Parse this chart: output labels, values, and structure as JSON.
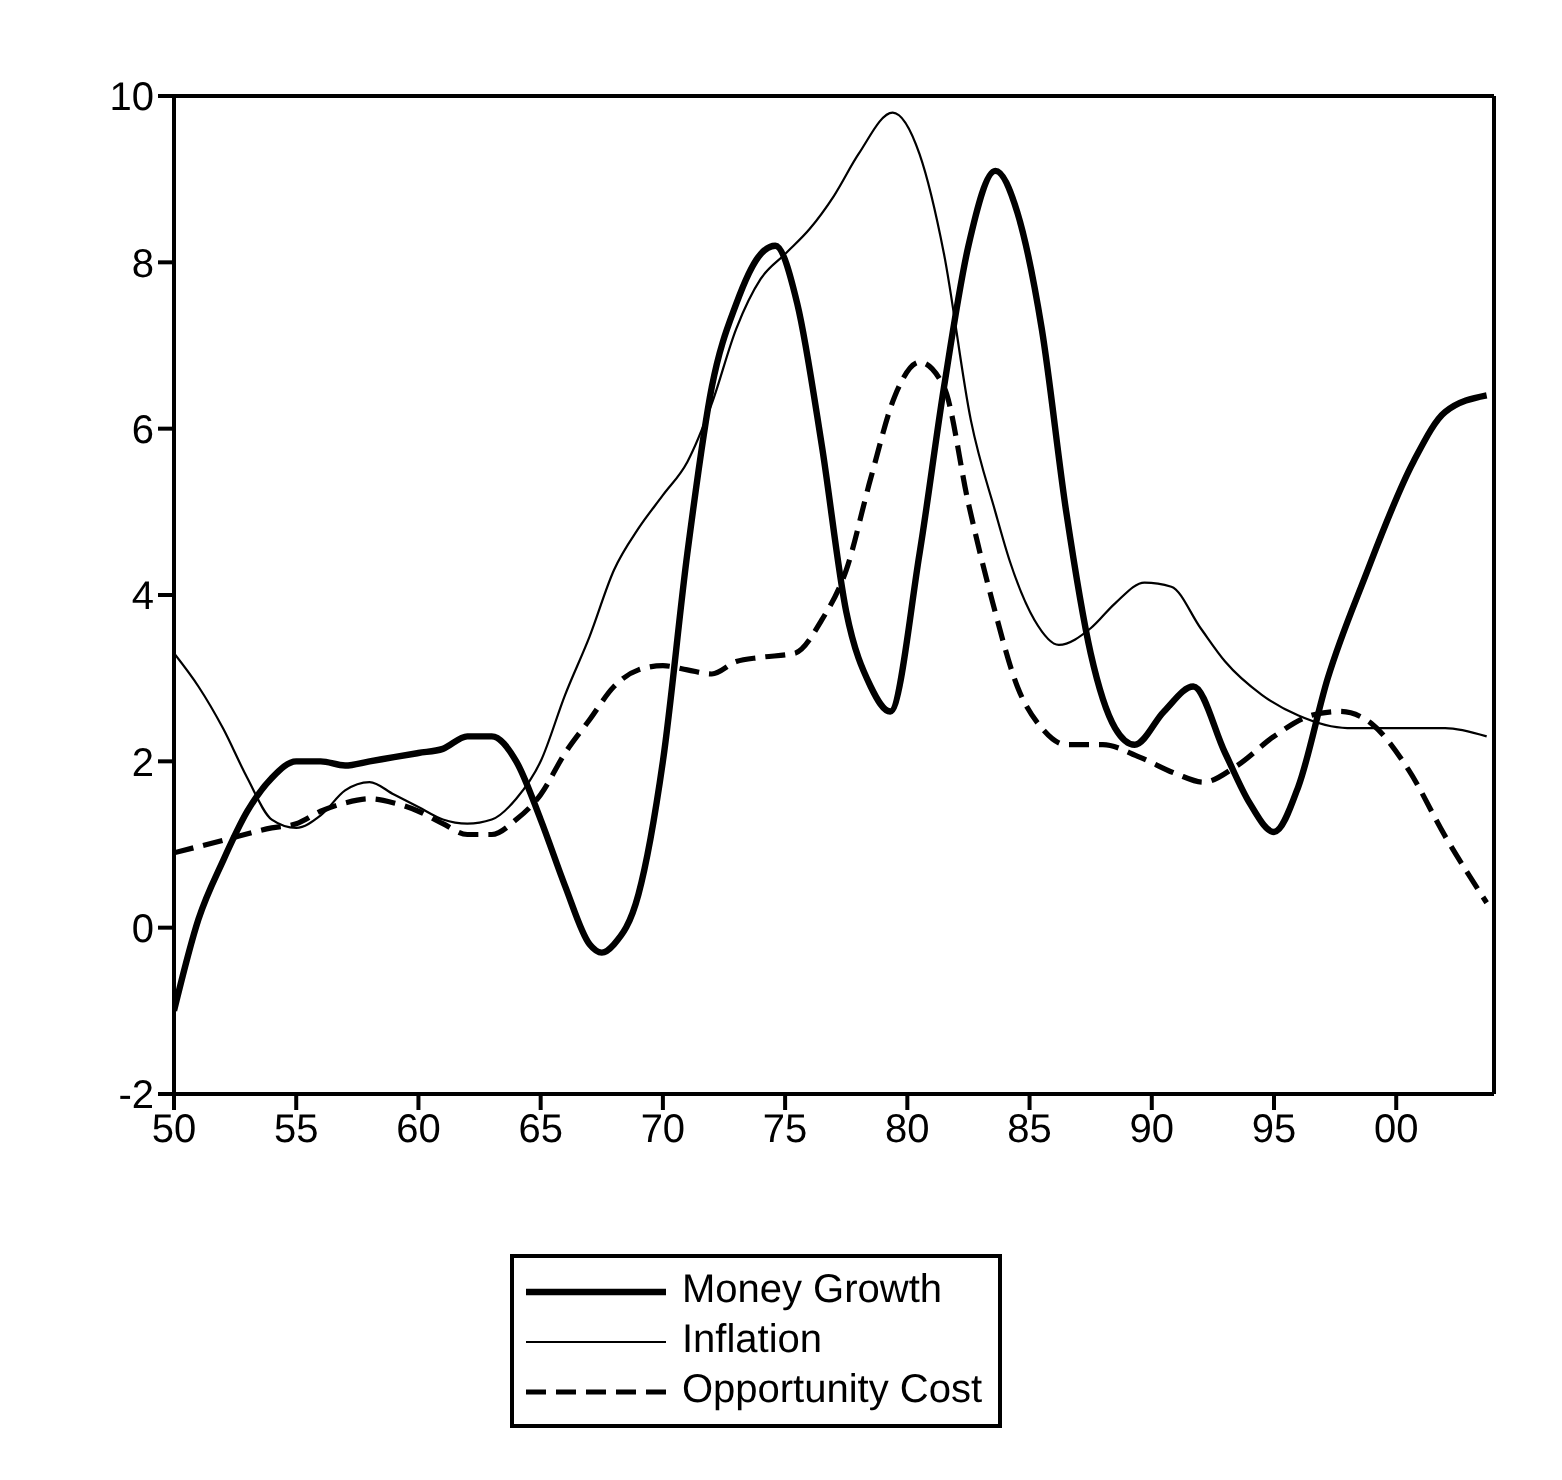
{
  "chart_data": {
    "type": "line",
    "xlim": [
      1950,
      2004
    ],
    "xticks": [
      {
        "value": 1950,
        "label": "50"
      },
      {
        "value": 1955,
        "label": "55"
      },
      {
        "value": 1960,
        "label": "60"
      },
      {
        "value": 1965,
        "label": "65"
      },
      {
        "value": 1970,
        "label": "70"
      },
      {
        "value": 1975,
        "label": "75"
      },
      {
        "value": 1980,
        "label": "80"
      },
      {
        "value": 1985,
        "label": "85"
      },
      {
        "value": 1990,
        "label": "90"
      },
      {
        "value": 1995,
        "label": "95"
      },
      {
        "value": 2000,
        "label": "00"
      }
    ],
    "ylim": [
      -2,
      10
    ],
    "yticks": [
      -2,
      0,
      2,
      4,
      6,
      8,
      10
    ],
    "grid": false,
    "legend": "bottom",
    "marker": "none",
    "series": [
      {
        "name": "Money Growth",
        "color": "#000000",
        "line_style": "solid",
        "x": [
          1950,
          1951,
          1952,
          1953,
          1954,
          1955,
          1956,
          1957,
          1958,
          1959,
          1960,
          1961,
          1962,
          1963,
          1964,
          1965,
          1966,
          1967,
          1967.5,
          1968,
          1969,
          1970,
          1971,
          1972,
          1973,
          1974,
          1974.6,
          1975.5,
          1976.5,
          1977.5,
          1978.5,
          1979.3,
          1980.5,
          1981.5,
          1982.5,
          1983.6,
          1984.5,
          1985.5,
          1986.5,
          1987.5,
          1988.5,
          1989.3,
          1990.5,
          1991.7,
          1993,
          1994,
          1995,
          1996,
          1997.2,
          1998.7,
          2000.7,
          2002,
          2003.7
        ],
        "values": [
          -1.0,
          0.1,
          0.8,
          1.4,
          1.8,
          2.0,
          2.0,
          1.95,
          2.0,
          2.05,
          2.1,
          2.15,
          2.3,
          2.3,
          2.0,
          1.3,
          0.5,
          -0.2,
          -0.3,
          -0.2,
          0.4,
          2.0,
          4.5,
          6.5,
          7.5,
          8.1,
          8.2,
          7.5,
          5.8,
          3.8,
          2.9,
          2.6,
          4.5,
          6.5,
          8.2,
          9.1,
          8.6,
          7.2,
          5.0,
          3.3,
          2.4,
          2.2,
          2.6,
          2.9,
          2.1,
          1.5,
          1.15,
          1.7,
          3.0,
          4.2,
          5.6,
          6.2,
          6.4
        ]
      },
      {
        "name": "Inflation",
        "color": "#000000",
        "line_style": "solid",
        "x": [
          1950,
          1951,
          1952,
          1953,
          1954,
          1955,
          1956,
          1957,
          1958,
          1959,
          1960,
          1961,
          1962,
          1963,
          1964,
          1965,
          1966,
          1967,
          1968,
          1969,
          1970,
          1971,
          1972,
          1973,
          1974,
          1975,
          1976,
          1977,
          1978,
          1979.4,
          1980.5,
          1981.5,
          1982.6,
          1983.6,
          1984.2,
          1985.2,
          1986.2,
          1987.5,
          1988.5,
          1989.7,
          1990.8,
          1992,
          1993,
          1994.5,
          1996,
          1998,
          2000,
          2002,
          2003.7
        ],
        "values": [
          3.3,
          2.9,
          2.4,
          1.8,
          1.3,
          1.2,
          1.35,
          1.65,
          1.75,
          1.6,
          1.45,
          1.3,
          1.25,
          1.3,
          1.55,
          2.0,
          2.8,
          3.5,
          4.3,
          4.8,
          5.2,
          5.6,
          6.3,
          7.2,
          7.8,
          8.1,
          8.4,
          8.8,
          9.3,
          9.8,
          9.3,
          8.1,
          6.1,
          5.0,
          4.4,
          3.7,
          3.4,
          3.6,
          3.9,
          4.15,
          4.1,
          3.6,
          3.2,
          2.8,
          2.55,
          2.4,
          2.4,
          2.4,
          2.3
        ]
      },
      {
        "name": "Opportunity Cost",
        "color": "#000000",
        "line_style": "dashed",
        "x": [
          1950,
          1952,
          1954,
          1955,
          1956,
          1957,
          1958,
          1959,
          1960,
          1961,
          1962,
          1963,
          1964,
          1965,
          1966,
          1967,
          1968,
          1969,
          1970,
          1971,
          1972,
          1973,
          1974,
          1975.4,
          1976.5,
          1977.5,
          1978.5,
          1979.5,
          1980.5,
          1981.5,
          1982.5,
          1983.5,
          1984.5,
          1985.5,
          1986.5,
          1988,
          1989.5,
          1991,
          1992.1,
          1993.5,
          1995,
          1996.5,
          1997.7,
          1999,
          2000.5,
          2002,
          2003.7
        ],
        "values": [
          0.9,
          1.05,
          1.2,
          1.25,
          1.4,
          1.5,
          1.55,
          1.5,
          1.4,
          1.25,
          1.12,
          1.12,
          1.3,
          1.6,
          2.1,
          2.5,
          2.9,
          3.1,
          3.15,
          3.1,
          3.05,
          3.2,
          3.25,
          3.3,
          3.7,
          4.3,
          5.4,
          6.4,
          6.8,
          6.5,
          5.1,
          3.9,
          2.9,
          2.4,
          2.2,
          2.2,
          2.05,
          1.85,
          1.75,
          1.95,
          2.3,
          2.55,
          2.6,
          2.45,
          1.9,
          1.1,
          0.3
        ]
      }
    ]
  }
}
